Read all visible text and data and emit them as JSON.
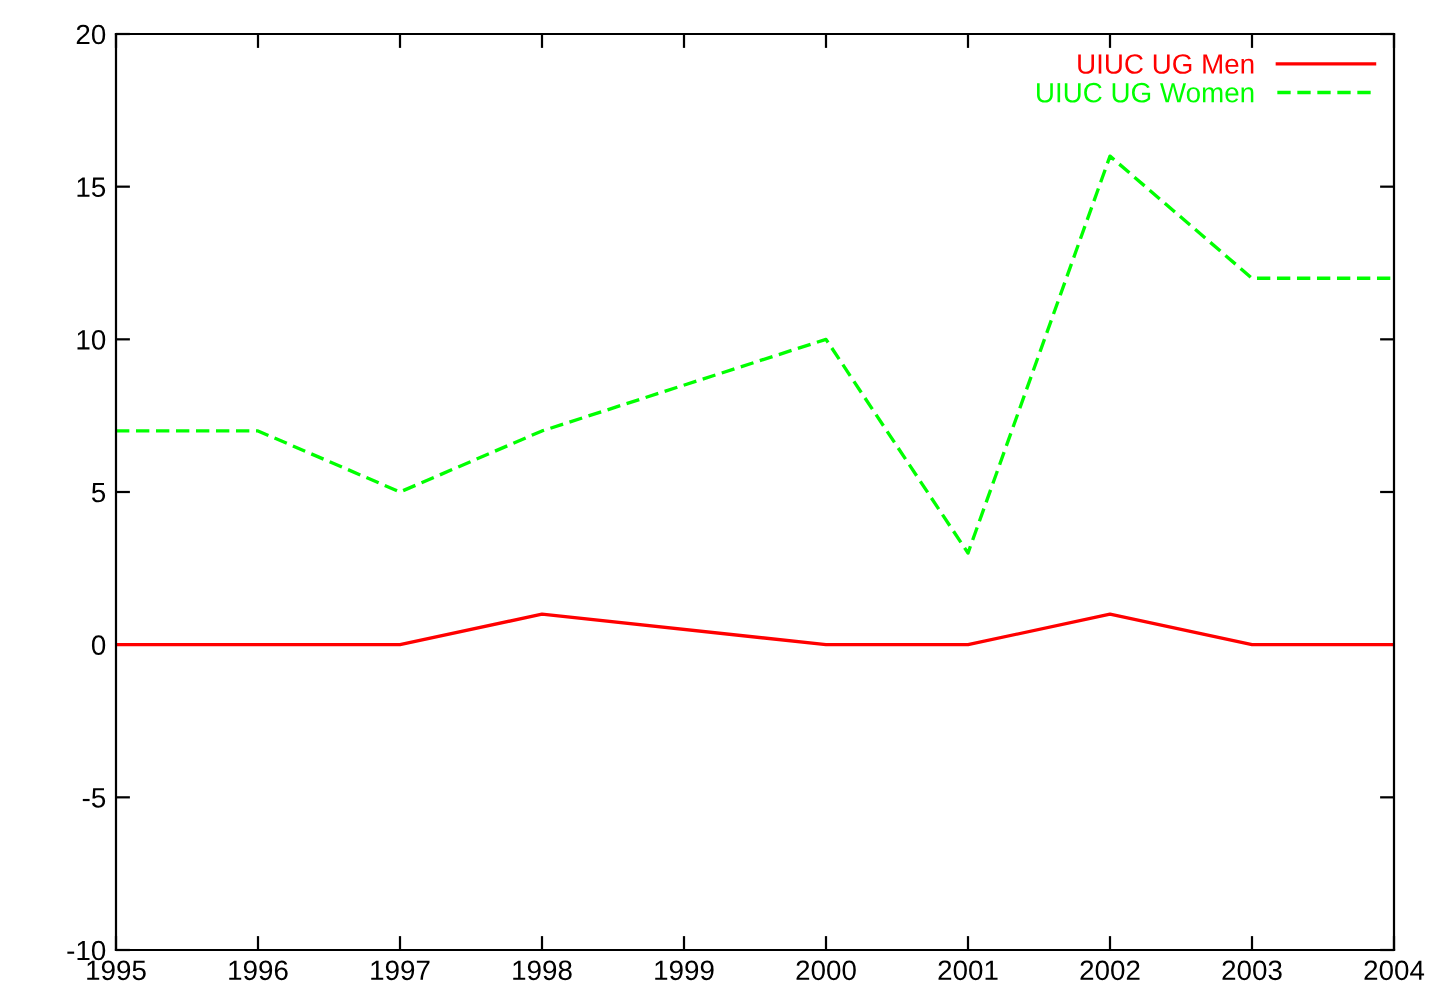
{
  "chart_data": {
    "type": "line",
    "xlim": [
      1995,
      2004
    ],
    "xticks": [
      1995,
      1996,
      1997,
      1998,
      1999,
      2000,
      2001,
      2002,
      2003,
      2004
    ],
    "ylim": [
      -10,
      20
    ],
    "yticks": [
      -10,
      -5,
      0,
      5,
      10,
      15,
      20
    ],
    "grid": false,
    "legend": "top right",
    "marker": "none",
    "series": [
      {
        "name": "UIUC UG Men",
        "color": "#ff0000",
        "line_style": "solid",
        "x": [
          1995,
          1996,
          1997,
          1998,
          2000,
          2001,
          2002,
          2003,
          2004
        ],
        "values": [
          0,
          0,
          0,
          1,
          0,
          0,
          1,
          0,
          0
        ]
      },
      {
        "name": "UIUC UG Women",
        "color": "#00ff00",
        "line_style": "dashed",
        "x": [
          1995,
          1996,
          1997,
          1998,
          2000,
          2001,
          2002,
          2003,
          2004
        ],
        "values": [
          7,
          7,
          5,
          7,
          10,
          3,
          16,
          12,
          12
        ]
      }
    ]
  }
}
